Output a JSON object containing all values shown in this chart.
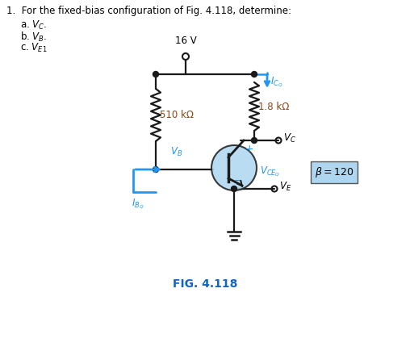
{
  "title_text": "1.  For the fixed-bias configuration of Fig. 4.118, determine:",
  "item_a": "a. $V_C.$",
  "item_b": "b. $V_B.$",
  "item_c": "c. $V_{E1}$",
  "fig_label": "FIG. 4.118",
  "fig_label_color": "#1565C0",
  "vcc_label": "16 V",
  "rc_label": "1.8 kΩ",
  "rb_label": "510 kΩ",
  "icq_label": "$I_{C_Q}$",
  "ibq_label": "$I_{B_Q}$",
  "vb_label": "$V_B$",
  "vc_label": "$V_C$",
  "ve_label": "$V_E$",
  "vceq_label": "$V_{CE_Q}$",
  "beta_label": "$\\beta = 120$",
  "transistor_fill": "#AED6F1",
  "beta_box_fill": "#AED6F1",
  "blue_color": "#2196F3",
  "dark_blue": "#1565C0",
  "circuit_color": "#1a1a1a",
  "rc_label_color": "#8B4513",
  "rb_label_color": "#8B4513",
  "bg_color": "#ffffff",
  "plus_minus_color": "#2196F3"
}
